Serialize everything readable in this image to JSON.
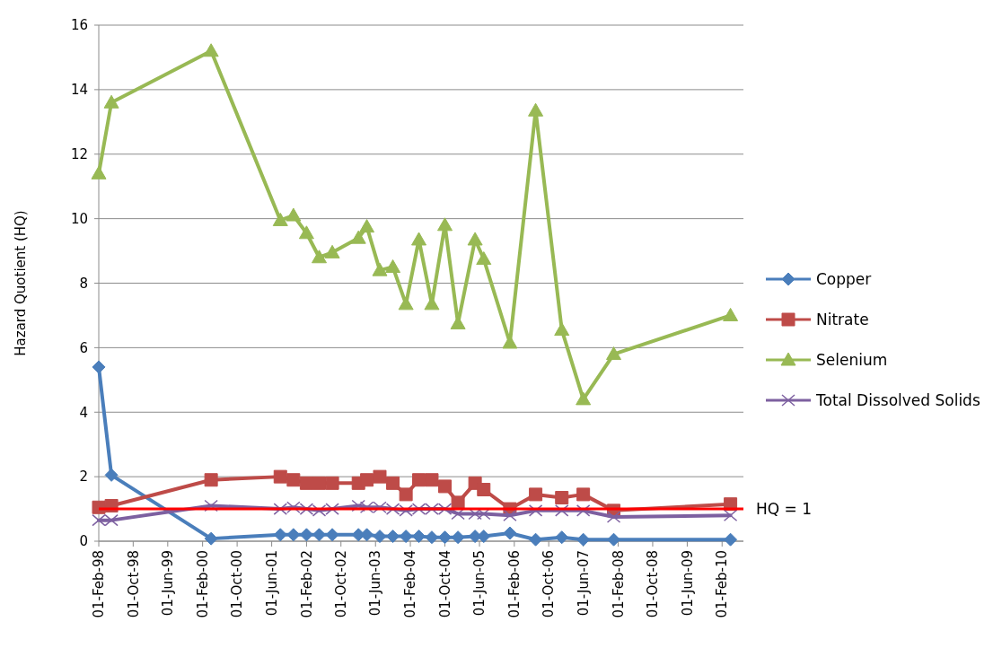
{
  "chart_data": {
    "type": "line",
    "ylabel": "Hazard Quotient (HQ)",
    "x": [
      "1998-02",
      "1998-05",
      "2000-04",
      "2001-08",
      "2001-11",
      "2002-02",
      "2002-05",
      "2002-08",
      "2003-02",
      "2003-04",
      "2003-07",
      "2003-10",
      "2004-01",
      "2004-04",
      "2004-07",
      "2004-10",
      "2005-01",
      "2005-05",
      "2005-07",
      "2006-01",
      "2006-07",
      "2007-01",
      "2007-06",
      "2008-01",
      "2010-04"
    ],
    "series": [
      {
        "name": "Copper",
        "color": "#4a7ebb",
        "marker": "diamond",
        "values": [
          5.4,
          2.05,
          0.08,
          0.2,
          0.2,
          0.2,
          0.2,
          0.2,
          0.2,
          0.2,
          0.15,
          0.15,
          0.15,
          0.15,
          0.12,
          0.12,
          0.12,
          0.15,
          0.15,
          0.25,
          0.05,
          0.12,
          0.05,
          0.05,
          0.05
        ]
      },
      {
        "name": "Nitrate",
        "color": "#be4b48",
        "marker": "square",
        "values": [
          1.05,
          1.1,
          1.9,
          2.0,
          1.9,
          1.8,
          1.8,
          1.8,
          1.8,
          1.9,
          2.0,
          1.8,
          1.45,
          1.9,
          1.9,
          1.7,
          1.2,
          1.8,
          1.6,
          1.0,
          1.45,
          1.35,
          1.45,
          0.95,
          1.15
        ]
      },
      {
        "name": "Selenium",
        "color": "#98b954",
        "marker": "triangle",
        "values": [
          11.4,
          13.6,
          15.2,
          9.95,
          10.1,
          9.55,
          8.8,
          8.95,
          9.4,
          9.75,
          8.4,
          8.5,
          7.35,
          9.35,
          7.35,
          9.8,
          6.75,
          9.35,
          8.75,
          6.15,
          13.35,
          6.55,
          4.4,
          5.8,
          7.0
        ]
      },
      {
        "name": "Total Dissolved Solids",
        "color": "#7d60a0",
        "marker": "cross",
        "values": [
          0.65,
          0.65,
          1.1,
          1.0,
          1.05,
          1.0,
          0.95,
          1.0,
          1.1,
          1.05,
          1.05,
          1.0,
          0.95,
          1.0,
          1.0,
          1.0,
          0.85,
          0.85,
          0.85,
          0.8,
          0.95,
          0.95,
          0.95,
          0.75,
          0.8
        ]
      }
    ],
    "ref_lines": [
      {
        "axis": "y",
        "value": 1,
        "label": "HQ = 1",
        "color": "#ff0000"
      }
    ],
    "xlim": [
      "1998-02-01",
      "2010-07-01"
    ],
    "xticks": [
      {
        "value": "1998-02-01",
        "label": "01-Feb-98"
      },
      {
        "value": "1998-10-01",
        "label": "01-Oct-98"
      },
      {
        "value": "1999-06-01",
        "label": "01-Jun-99"
      },
      {
        "value": "2000-02-01",
        "label": "01-Feb-00"
      },
      {
        "value": "2000-10-01",
        "label": "01-Oct-00"
      },
      {
        "value": "2001-06-01",
        "label": "01-Jun-01"
      },
      {
        "value": "2002-02-01",
        "label": "01-Feb-02"
      },
      {
        "value": "2002-10-01",
        "label": "01-Oct-02"
      },
      {
        "value": "2003-06-01",
        "label": "01-Jun-03"
      },
      {
        "value": "2004-02-01",
        "label": "01-Feb-04"
      },
      {
        "value": "2004-10-01",
        "label": "01-Oct-04"
      },
      {
        "value": "2005-06-01",
        "label": "01-Jun-05"
      },
      {
        "value": "2006-02-01",
        "label": "01-Feb-06"
      },
      {
        "value": "2006-10-01",
        "label": "01-Oct-06"
      },
      {
        "value": "2007-06-01",
        "label": "01-Jun-07"
      },
      {
        "value": "2008-02-01",
        "label": "01-Feb-08"
      },
      {
        "value": "2008-10-01",
        "label": "01-Oct-08"
      },
      {
        "value": "2009-06-01",
        "label": "01-Jun-09"
      },
      {
        "value": "2010-02-01",
        "label": "01-Feb-10"
      }
    ],
    "ylim": [
      0,
      16
    ],
    "yticks": [
      0,
      2,
      4,
      6,
      8,
      10,
      12,
      14,
      16
    ],
    "grid": "y",
    "legend": "right",
    "line_style": "solid"
  }
}
